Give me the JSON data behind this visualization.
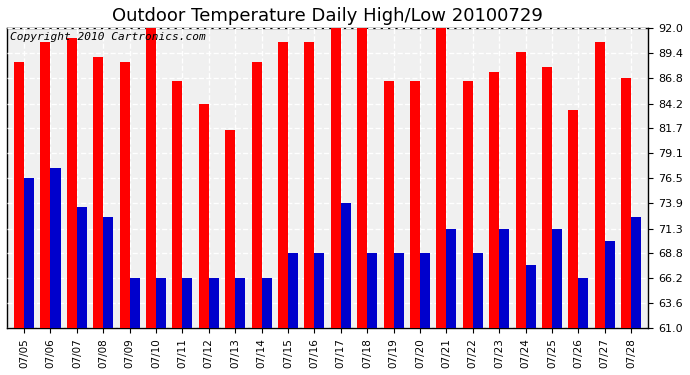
{
  "title": "Outdoor Temperature Daily High/Low 20100729",
  "copyright": "Copyright 2010 Cartronics.com",
  "dates": [
    "07/05",
    "07/06",
    "07/07",
    "07/08",
    "07/09",
    "07/10",
    "07/11",
    "07/12",
    "07/13",
    "07/14",
    "07/15",
    "07/16",
    "07/17",
    "07/18",
    "07/19",
    "07/20",
    "07/21",
    "07/22",
    "07/23",
    "07/24",
    "07/25",
    "07/26",
    "07/27",
    "07/28"
  ],
  "highs": [
    88.5,
    90.5,
    91.0,
    89.0,
    88.5,
    92.0,
    86.5,
    84.2,
    81.5,
    88.5,
    90.5,
    90.5,
    92.0,
    92.0,
    86.5,
    86.5,
    92.0,
    86.5,
    87.5,
    89.5,
    88.0,
    83.5,
    90.5,
    86.8
  ],
  "lows": [
    76.5,
    77.5,
    73.5,
    72.5,
    66.2,
    66.2,
    66.2,
    66.2,
    66.2,
    66.2,
    68.8,
    68.8,
    73.9,
    68.8,
    68.8,
    68.8,
    71.3,
    68.8,
    71.3,
    67.5,
    71.3,
    66.2,
    70.0,
    72.5
  ],
  "high_color": "#ff0000",
  "low_color": "#0000cc",
  "bg_color": "#ffffff",
  "ymin": 61.0,
  "ymax": 92.0,
  "yticks": [
    61.0,
    63.6,
    66.2,
    68.8,
    71.3,
    73.9,
    76.5,
    79.1,
    81.7,
    84.2,
    86.8,
    89.4,
    92.0
  ],
  "title_fontsize": 13,
  "copyright_fontsize": 8
}
